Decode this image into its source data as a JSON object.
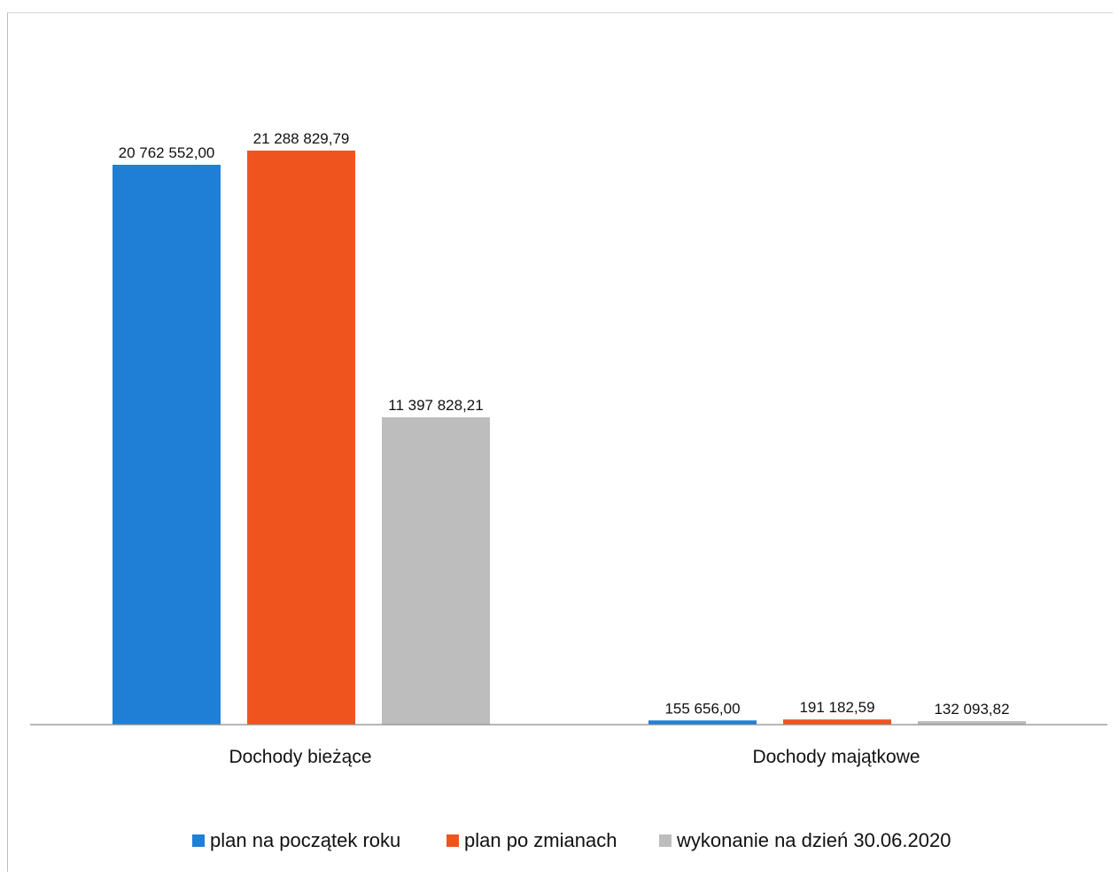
{
  "chart_data": {
    "type": "bar",
    "title": "",
    "xlabel": "",
    "ylabel": "",
    "categories": [
      "Dochody bieżące",
      "Dochody majątkowe"
    ],
    "ylim": [
      0,
      21288829.79
    ],
    "grid": false,
    "legend_position": "bottom",
    "series": [
      {
        "name": "plan na początek roku",
        "color": "#1f7fd6",
        "values": [
          20762552.0,
          155656.0
        ],
        "labels": [
          "20 762 552,00",
          "155 656,00"
        ]
      },
      {
        "name": "plan po zmianach",
        "color": "#f0541e",
        "values": [
          21288829.79,
          191182.59
        ],
        "labels": [
          "21 288 829,79",
          "191 182,59"
        ]
      },
      {
        "name": "wykonanie na dzień 30.06.2020",
        "color": "#bdbdbd",
        "values": [
          11397828.21,
          132093.82
        ],
        "labels": [
          "11 397 828,21",
          "132 093,82"
        ]
      }
    ]
  }
}
